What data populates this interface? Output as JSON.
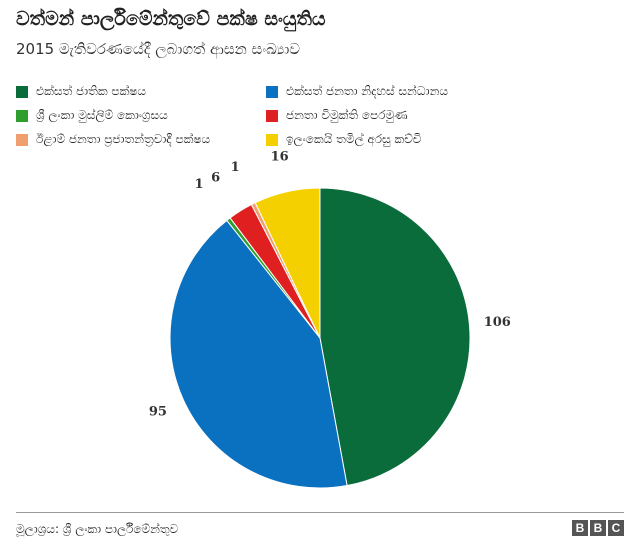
{
  "header": {
    "title": "වත්මන් පාර්ලිමේන්තුවේ පක්ෂ සංයුතිය",
    "subtitle": "2015 මැතිවරණයේදී ලබාගත් ආසන සංඛ්‍යාව"
  },
  "chart_data": {
    "type": "pie",
    "title": "වත්මන් පාර්ලිමේන්තුවේ පක්ෂ සංයුතිය",
    "subtitle": "2015 මැතිවරණයේදී ලබාගත් ආසන සංඛ්‍යාව",
    "legend_position": "top",
    "slices": [
      {
        "name": "එක්සත් ජාතික පක්ෂය",
        "value": 106,
        "color": "#0a6b3b"
      },
      {
        "name": "එක්සත් ජනතා නිදහස් සන්ධානය",
        "value": 95,
        "color": "#0a70c0"
      },
      {
        "name": "ශ්‍රී ලංකා මුස්ලිම් කොංග්‍රසය",
        "value": 1,
        "color": "#2e9e2e"
      },
      {
        "name": "ජනතා විමුක්ති පෙරමුණ",
        "value": 6,
        "color": "#e02020"
      },
      {
        "name": "ඊළාම් ජනතා ප්‍රජාතන්ත්‍රවාදී පක්ෂය",
        "value": 1,
        "color": "#f0a070"
      },
      {
        "name": "ඉලංකෙයි තමිල් අරසු කච්චි",
        "value": 16,
        "color": "#f5d000"
      }
    ]
  },
  "footer": {
    "source": "මූලාශ්‍රය: ශ්‍රී ලංකා පාර්ලිමේන්තුව",
    "logo_letters": [
      "B",
      "B",
      "C"
    ]
  }
}
